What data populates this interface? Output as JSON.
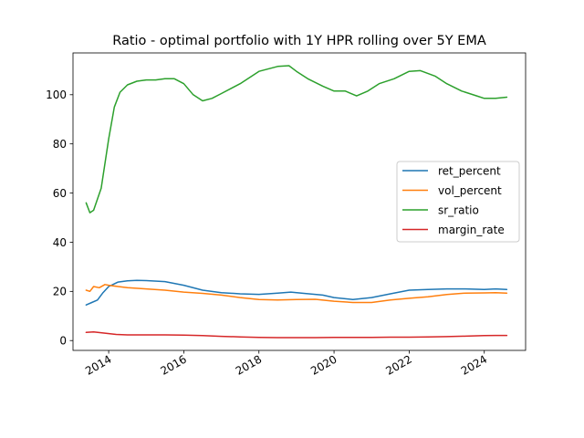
{
  "chart_data": {
    "type": "line",
    "title": "Ratio - optimal portfolio with 1Y HPR rolling over 5Y EMA",
    "xlabel": "",
    "ylabel": "",
    "xlim": [
      2013.05,
      2025.1
    ],
    "ylim": [
      -4,
      117
    ],
    "xticks": [
      2014,
      2016,
      2018,
      2020,
      2022,
      2024
    ],
    "xtick_labels": [
      "2014",
      "2016",
      "2018",
      "2020",
      "2022",
      "2024"
    ],
    "yticks": [
      0,
      20,
      40,
      60,
      80,
      100
    ],
    "ytick_labels": [
      "0",
      "20",
      "40",
      "60",
      "80",
      "100"
    ],
    "grid": false,
    "legend_position": "center-right",
    "series": [
      {
        "name": "ret_percent",
        "color": "#1f77b4",
        "x": [
          2013.4,
          2013.55,
          2013.7,
          2013.85,
          2014.0,
          2014.25,
          2014.5,
          2014.75,
          2015.0,
          2015.5,
          2016.0,
          2016.5,
          2017.0,
          2017.5,
          2018.0,
          2018.5,
          2018.85,
          2019.2,
          2019.7,
          2020.0,
          2020.5,
          2021.0,
          2021.5,
          2022.0,
          2022.5,
          2023.0,
          2023.5,
          2024.0,
          2024.3,
          2024.6
        ],
        "y": [
          14.5,
          15.5,
          16.5,
          19.5,
          22.0,
          23.8,
          24.3,
          24.5,
          24.4,
          24.0,
          22.5,
          20.5,
          19.5,
          19.0,
          18.8,
          19.3,
          19.7,
          19.2,
          18.5,
          17.5,
          16.7,
          17.5,
          19.0,
          20.5,
          20.8,
          21.0,
          21.0,
          20.8,
          21.0,
          20.8
        ]
      },
      {
        "name": "vol_percent",
        "color": "#ff7f0e",
        "x": [
          2013.4,
          2013.5,
          2013.6,
          2013.75,
          2013.9,
          2014.0,
          2014.25,
          2014.5,
          2015.0,
          2015.5,
          2016.0,
          2016.5,
          2017.0,
          2017.5,
          2018.0,
          2018.5,
          2019.0,
          2019.5,
          2020.0,
          2020.5,
          2021.0,
          2021.5,
          2022.0,
          2022.5,
          2023.0,
          2023.5,
          2024.0,
          2024.3,
          2024.6
        ],
        "y": [
          20.5,
          20.0,
          22.0,
          21.5,
          22.8,
          22.5,
          22.0,
          21.5,
          21.0,
          20.5,
          19.7,
          19.2,
          18.5,
          17.5,
          16.7,
          16.5,
          16.7,
          16.8,
          16.0,
          15.5,
          15.5,
          16.5,
          17.2,
          17.8,
          18.7,
          19.3,
          19.4,
          19.5,
          19.3
        ]
      },
      {
        "name": "sr_ratio",
        "color": "#2ca02c",
        "x": [
          2013.4,
          2013.5,
          2013.6,
          2013.8,
          2014.0,
          2014.15,
          2014.3,
          2014.5,
          2014.75,
          2015.0,
          2015.25,
          2015.5,
          2015.75,
          2016.0,
          2016.25,
          2016.5,
          2016.75,
          2017.0,
          2017.5,
          2018.0,
          2018.5,
          2018.8,
          2019.0,
          2019.3,
          2019.7,
          2020.0,
          2020.3,
          2020.6,
          2020.9,
          2021.2,
          2021.6,
          2022.0,
          2022.3,
          2022.7,
          2023.0,
          2023.4,
          2023.8,
          2024.0,
          2024.3,
          2024.6
        ],
        "y": [
          56,
          52,
          53,
          62,
          82,
          95,
          101,
          104,
          105.5,
          106,
          106,
          106.5,
          106.5,
          104.5,
          100,
          97.5,
          98.5,
          100.5,
          104.5,
          109.5,
          111.5,
          111.8,
          109.5,
          106.5,
          103.5,
          101.5,
          101.5,
          99.5,
          101.5,
          104.5,
          106.5,
          109.5,
          109.8,
          107.5,
          104.5,
          101.5,
          99.5,
          98.5,
          98.5,
          99
        ]
      },
      {
        "name": "margin_rate",
        "color": "#d62728",
        "x": [
          2013.4,
          2013.6,
          2013.9,
          2014.2,
          2014.5,
          2015.0,
          2015.5,
          2016.0,
          2016.5,
          2017.0,
          2017.5,
          2018.0,
          2018.5,
          2019.0,
          2019.5,
          2020.0,
          2020.5,
          2021.0,
          2021.5,
          2022.0,
          2022.5,
          2023.0,
          2023.5,
          2024.0,
          2024.3,
          2024.6
        ],
        "y": [
          3.3,
          3.5,
          3.0,
          2.5,
          2.3,
          2.3,
          2.3,
          2.2,
          2.0,
          1.7,
          1.5,
          1.3,
          1.2,
          1.2,
          1.2,
          1.3,
          1.3,
          1.3,
          1.4,
          1.4,
          1.5,
          1.6,
          1.8,
          2.0,
          2.1,
          2.1
        ]
      }
    ]
  }
}
